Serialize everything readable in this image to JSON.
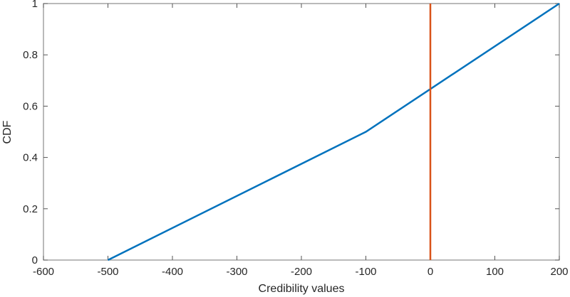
{
  "chart_data": {
    "type": "line",
    "title": "",
    "xlabel": "Credibility values",
    "ylabel": "CDF",
    "xlim": [
      -600,
      200
    ],
    "ylim": [
      0,
      1
    ],
    "xticks": [
      -600,
      -500,
      -400,
      -300,
      -200,
      -100,
      0,
      100,
      200
    ],
    "xtick_labels": [
      "-600",
      "-500",
      "-400",
      "-300",
      "-200",
      "-100",
      "0",
      "100",
      "200"
    ],
    "yticks": [
      0,
      0.2,
      0.4,
      0.6,
      0.8,
      1
    ],
    "ytick_labels": [
      "0",
      "0.2",
      "0.4",
      "0.6",
      "0.8",
      "1"
    ],
    "grid": false,
    "series": [
      {
        "name": "CDF",
        "color": "#0072BD",
        "x": [
          -500,
          -100,
          200
        ],
        "y": [
          0,
          0.5,
          1
        ]
      },
      {
        "name": "threshold",
        "color": "#D95319",
        "x": [
          0,
          0
        ],
        "y": [
          0,
          1
        ]
      }
    ]
  }
}
